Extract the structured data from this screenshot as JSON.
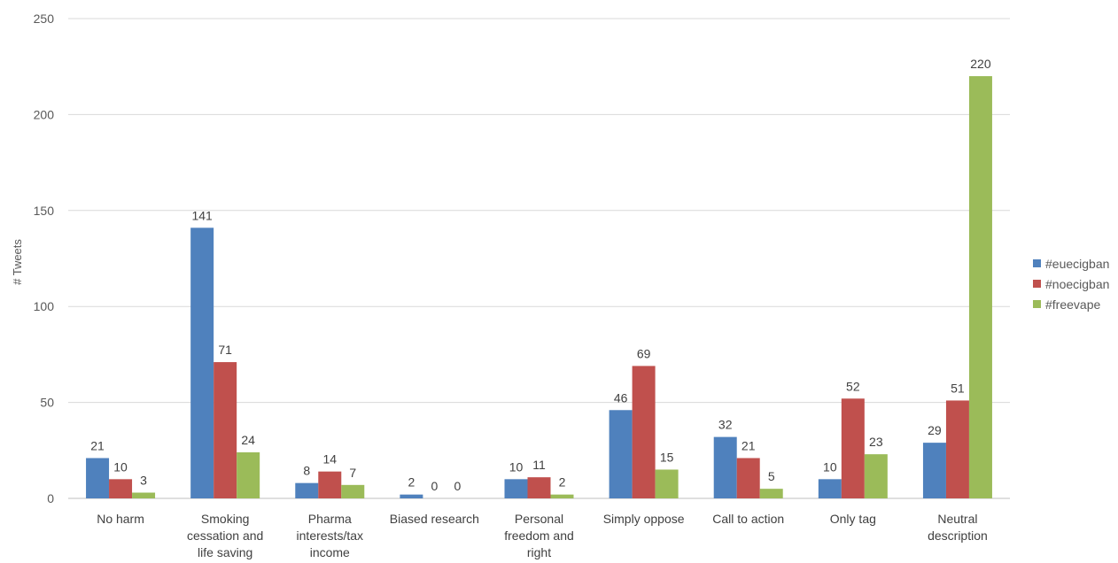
{
  "chart_data": {
    "type": "bar",
    "ylabel": "# Tweets",
    "ylim": [
      0,
      250
    ],
    "yticks": [
      0,
      50,
      100,
      150,
      200,
      250
    ],
    "grid": true,
    "legend_position": "right",
    "categories": [
      [
        "No harm"
      ],
      [
        "Smoking",
        "cessation and",
        "life saving"
      ],
      [
        "Pharma",
        "interests/tax",
        "income"
      ],
      [
        "Biased research"
      ],
      [
        "Personal",
        "freedom and",
        "right"
      ],
      [
        "Simply oppose"
      ],
      [
        "Call to action"
      ],
      [
        "Only tag"
      ],
      [
        "Neutral",
        "description"
      ]
    ],
    "series": [
      {
        "name": "#euecigban",
        "color": "#4f81bd",
        "values": [
          21,
          141,
          8,
          2,
          10,
          46,
          32,
          10,
          29
        ]
      },
      {
        "name": "#noecigban",
        "color": "#c0504d",
        "values": [
          10,
          71,
          14,
          0,
          11,
          69,
          21,
          52,
          51
        ]
      },
      {
        "name": "#freevape",
        "color": "#9bbb59",
        "values": [
          3,
          24,
          7,
          0,
          2,
          15,
          5,
          23,
          220
        ]
      }
    ]
  }
}
